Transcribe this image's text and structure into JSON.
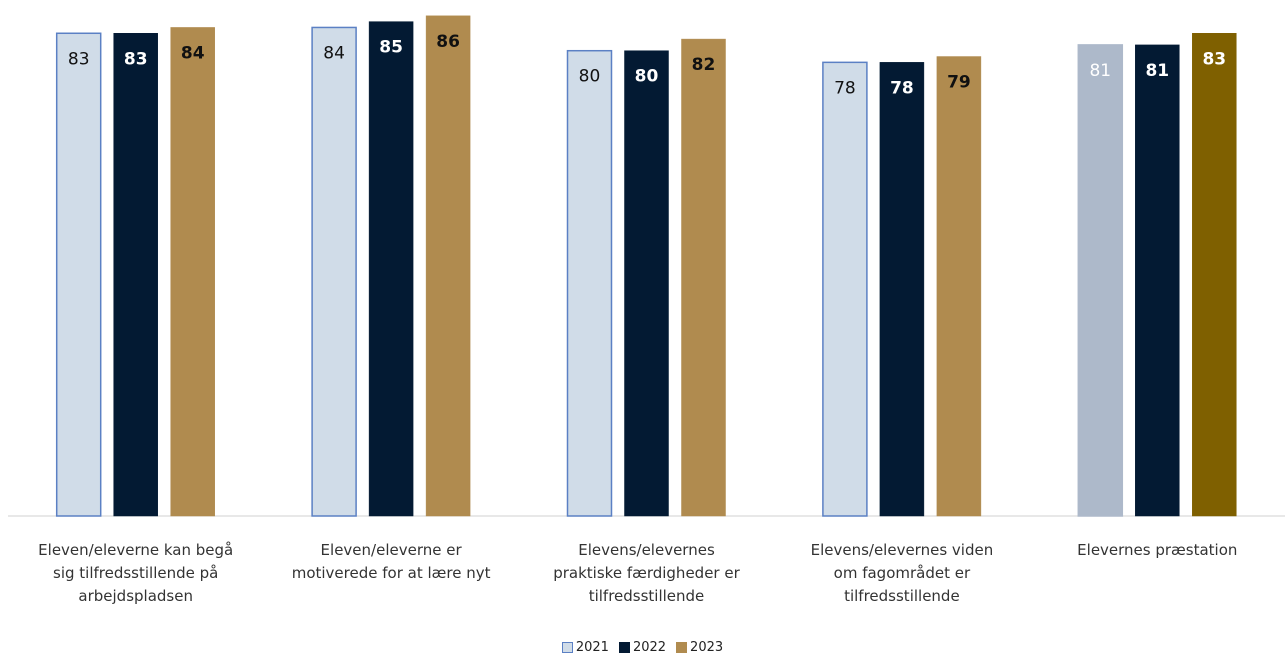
{
  "chart_data": {
    "type": "bar",
    "categories": [
      [
        "Eleven/eleverne kan begå",
        "sig tilfredsstillende på",
        "arbejdspladsen"
      ],
      [
        "Eleven/eleverne er",
        "motiverede for at lære nyt"
      ],
      [
        "Elevens/elevernes",
        "praktiske færdigheder er",
        "tilfredsstillende"
      ],
      [
        "Elevens/elevernes viden",
        "om fagområdet er",
        "tilfredsstillende"
      ],
      [
        "Elevernes præstation"
      ]
    ],
    "series": [
      {
        "name": "2021",
        "values": [
          83,
          84,
          80,
          78,
          81
        ],
        "color": "#d0dce8",
        "border": "#5b80c4",
        "label_color": "#111111"
      },
      {
        "name": "2022",
        "values": [
          83,
          85,
          80,
          78,
          81
        ],
        "color": "#031a33",
        "border": "#031a33",
        "label_color": "#ffffff"
      },
      {
        "name": "2023",
        "values": [
          84,
          86,
          82,
          79,
          83
        ],
        "color": "#b08b4f",
        "border": "#b08b4f",
        "label_color": "#111111"
      }
    ],
    "highlight_category": 4,
    "highlight_colors": {
      "2021": "#adb9ca",
      "2023": "#7f6000"
    },
    "highlight_label_color": "#ffffff",
    "ylim": [
      0,
      87
    ],
    "grid": false,
    "legend_position": "bottom"
  }
}
